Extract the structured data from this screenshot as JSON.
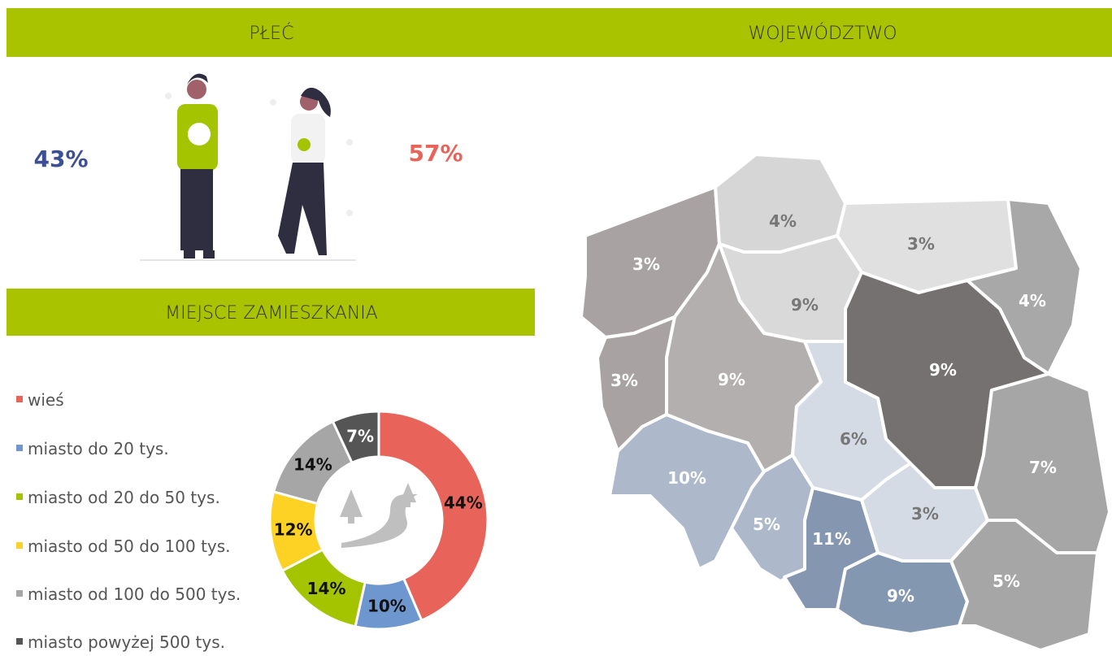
{
  "headers": {
    "gender": "PŁEĆ",
    "region": "WOJEWÓDZTWO",
    "residence": "MIEJSCE ZAMIESZKANIA"
  },
  "gender": {
    "male": "43%",
    "female": "57%"
  },
  "chart_data": {
    "type": "donut",
    "categories": [
      "wieś",
      "miasto do 20 tys.",
      "miasto od 20 do 50 tys.",
      "miasto od 50 do 100 tys.",
      "miasto od 100 do 500 tys.",
      "miasto powyżej 500 tys."
    ],
    "values": [
      44,
      10,
      14,
      12,
      14,
      7
    ],
    "value_labels": [
      "44%",
      "10%",
      "14%",
      "12%",
      "14%",
      "7%"
    ],
    "colors": [
      "#e8645a",
      "#6f97cf",
      "#a5c400",
      "#fdd224",
      "#a6a6a6",
      "#555555"
    ]
  },
  "map": {
    "regions": [
      {
        "label": "3%",
        "color": "#a8a3a2"
      },
      {
        "label": "4%",
        "color": "#d6d6d6"
      },
      {
        "label": "3%",
        "color": "#e0e0e0"
      },
      {
        "label": "4%",
        "color": "#a8a8a8"
      },
      {
        "label": "9%",
        "color": "#d9d9d9"
      },
      {
        "label": "3%",
        "color": "#a8a3a2"
      },
      {
        "label": "9%",
        "color": "#b3afae"
      },
      {
        "label": "9%",
        "color": "#757170"
      },
      {
        "label": "6%",
        "color": "#d5dbe5"
      },
      {
        "label": "10%",
        "color": "#adb9ca"
      },
      {
        "label": "5%",
        "color": "#adb9ca"
      },
      {
        "label": "11%",
        "color": "#8596b0"
      },
      {
        "label": "3%",
        "color": "#d5dbe5"
      },
      {
        "label": "7%",
        "color": "#a6a6a6"
      },
      {
        "label": "9%",
        "color": "#8497b0"
      },
      {
        "label": "5%",
        "color": "#a6a6a6"
      }
    ]
  }
}
